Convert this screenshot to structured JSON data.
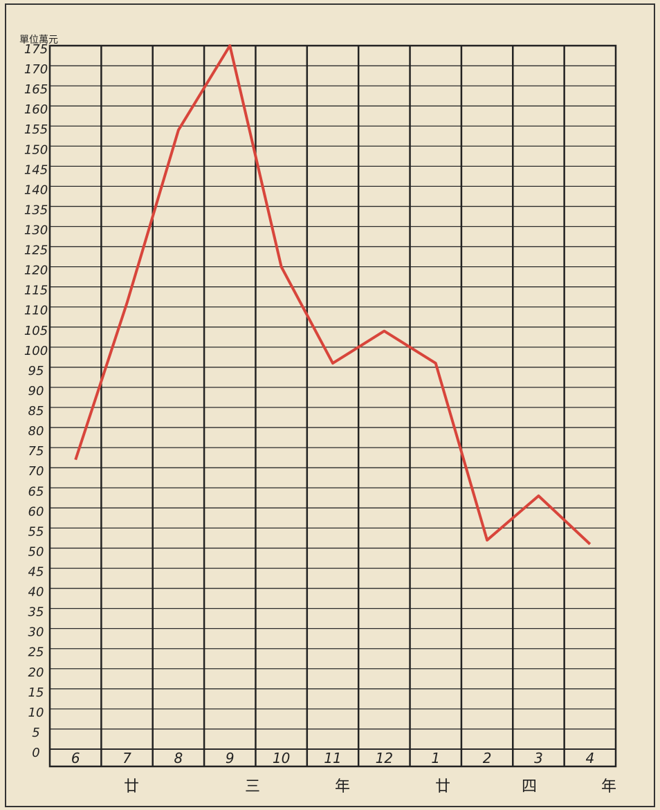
{
  "chart_data": {
    "type": "line",
    "y_axis_label": "單位萬元",
    "categories": [
      "6",
      "7",
      "8",
      "9",
      "10",
      "11",
      "12",
      "1",
      "2",
      "3",
      "4"
    ],
    "x_group_labels": [
      "廿",
      "三",
      "年",
      "廿",
      "四",
      "年"
    ],
    "series": [
      {
        "color": "#d8453b",
        "values": [
          72,
          111,
          154,
          175,
          120,
          96,
          104,
          96,
          52,
          63,
          51
        ]
      }
    ],
    "ylim": [
      0,
      175
    ],
    "yticks": [
      0,
      5,
      10,
      15,
      20,
      25,
      30,
      35,
      40,
      45,
      50,
      55,
      60,
      65,
      70,
      75,
      80,
      85,
      90,
      95,
      100,
      105,
      110,
      115,
      120,
      125,
      130,
      135,
      140,
      145,
      150,
      155,
      160,
      165,
      170,
      175
    ],
    "grid": true
  }
}
